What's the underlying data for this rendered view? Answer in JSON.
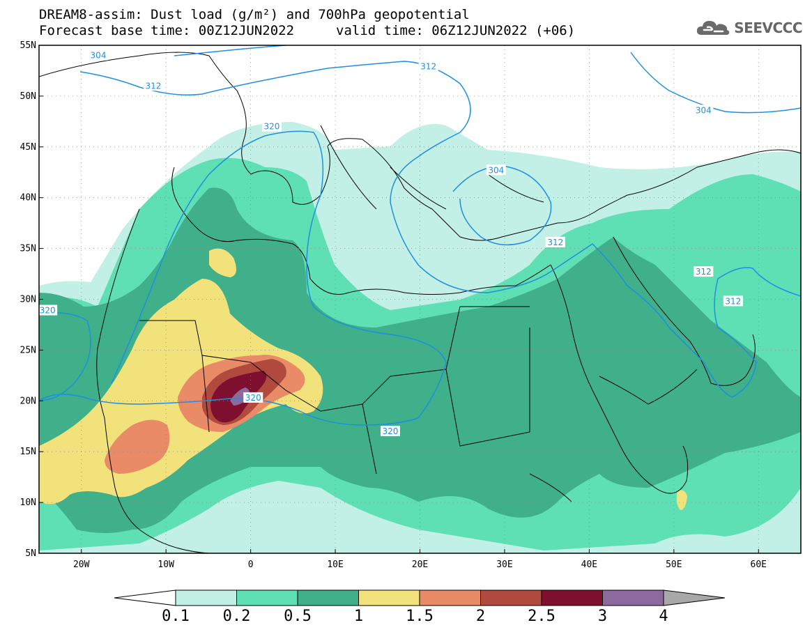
{
  "title": {
    "line1": "DREAM8-assim: Dust load (g/m²) and 700hPa geopotential",
    "line2_base": "Forecast base time: 00Z12JUN2022",
    "line2_valid": "valid time: 06Z12JUN2022 (+06)"
  },
  "logo": {
    "text": "SEEVCCC",
    "icon": "cloud-icon"
  },
  "map": {
    "lon_range": [
      -25,
      65
    ],
    "lat_range": [
      5,
      55
    ],
    "lon_ticks": [
      {
        "value": -20,
        "label": "20W"
      },
      {
        "value": -10,
        "label": "10W"
      },
      {
        "value": 0,
        "label": "0"
      },
      {
        "value": 10,
        "label": "10E"
      },
      {
        "value": 20,
        "label": "20E"
      },
      {
        "value": 30,
        "label": "30E"
      },
      {
        "value": 40,
        "label": "40E"
      },
      {
        "value": 50,
        "label": "50E"
      },
      {
        "value": 60,
        "label": "60E"
      }
    ],
    "lat_ticks": [
      {
        "value": 5,
        "label": "5N"
      },
      {
        "value": 10,
        "label": "10N"
      },
      {
        "value": 15,
        "label": "15N"
      },
      {
        "value": 20,
        "label": "20N"
      },
      {
        "value": 25,
        "label": "25N"
      },
      {
        "value": 30,
        "label": "30N"
      },
      {
        "value": 35,
        "label": "35N"
      },
      {
        "value": 40,
        "label": "40N"
      },
      {
        "value": 45,
        "label": "45N"
      },
      {
        "value": 50,
        "label": "50N"
      },
      {
        "value": 55,
        "label": "55N"
      }
    ],
    "grid": true,
    "contour_color": "#1e8fe0",
    "contour_labels": [
      {
        "text": "304",
        "lon": -18.0,
        "lat": 54.0
      },
      {
        "text": "312",
        "lon": -11.5,
        "lat": 51.0
      },
      {
        "text": "320",
        "lon": 2.5,
        "lat": 47.0
      },
      {
        "text": "312",
        "lon": 21.0,
        "lat": 52.9
      },
      {
        "text": "304",
        "lon": 53.5,
        "lat": 48.6
      },
      {
        "text": "304",
        "lon": 29.0,
        "lat": 42.7
      },
      {
        "text": "312",
        "lon": 36.0,
        "lat": 35.6
      },
      {
        "text": "312",
        "lon": 53.5,
        "lat": 32.7
      },
      {
        "text": "312",
        "lon": 57.0,
        "lat": 29.8
      },
      {
        "text": "320",
        "lon": -24.0,
        "lat": 28.9
      },
      {
        "text": "320",
        "lon": 0.3,
        "lat": 20.3
      },
      {
        "text": "320",
        "lon": 16.5,
        "lat": 17.0
      }
    ]
  },
  "colorbar": {
    "boundaries": [
      "0.1",
      "0.2",
      "0.5",
      "1",
      "1.5",
      "2",
      "2.5",
      "3",
      "4"
    ],
    "colors": [
      "#c2f0e6",
      "#5fe0b4",
      "#3fb08a",
      "#f2e27c",
      "#e88b66",
      "#b0493e",
      "#7e0f2e",
      "#8c6aa0"
    ],
    "over_color": "#a8a8a8",
    "under_color": "#ffffff"
  }
}
